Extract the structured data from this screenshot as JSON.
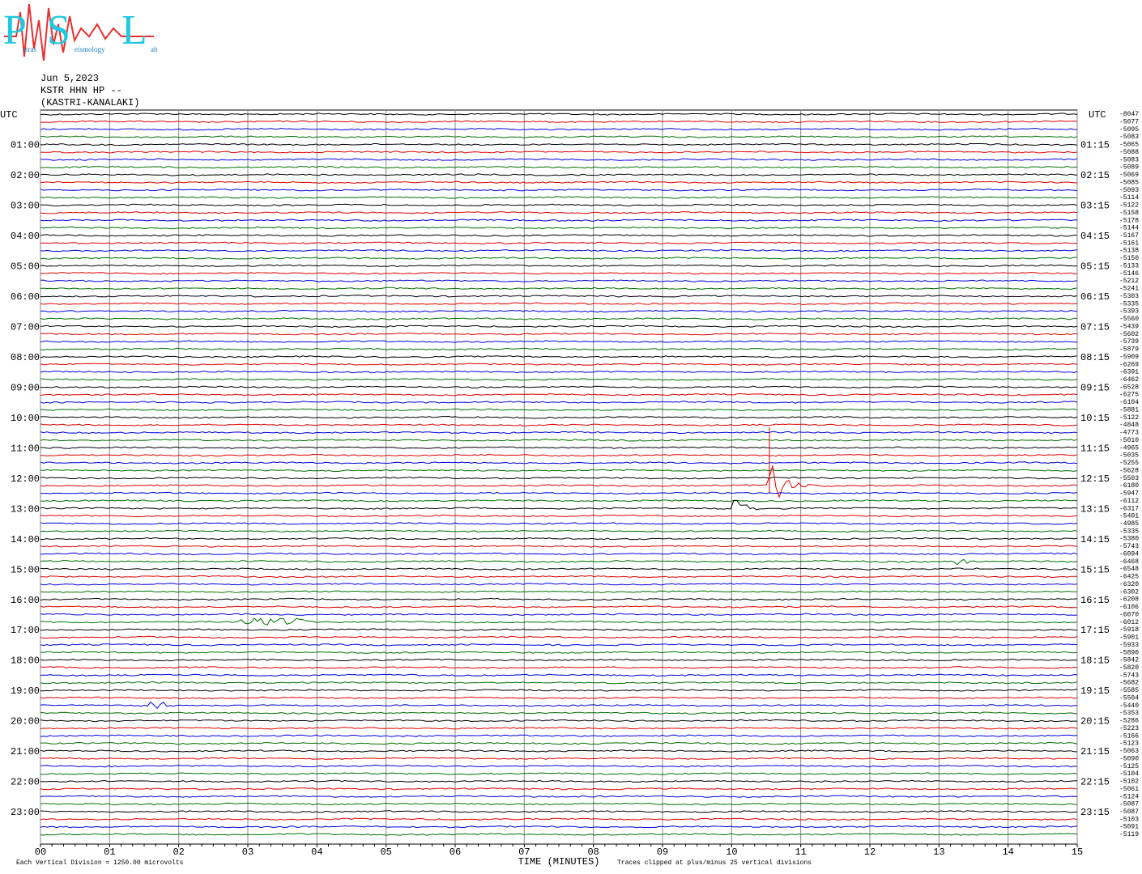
{
  "header": {
    "logo": {
      "letter_p": "P",
      "p_rest": "atras",
      "letter_s": "S",
      "s_rest": "eismology",
      "letter_l": "L",
      "l_rest": "ab"
    },
    "date": "Jun 5,2023",
    "station": "KSTR HHN HP --",
    "location": "(KASTRI-KANALAKI)"
  },
  "left_labels": [
    "UTC",
    "01:00",
    "02:00",
    "03:00",
    "04:00",
    "05:00",
    "06:00",
    "07:00",
    "08:00",
    "09:00",
    "10:00",
    "11:00",
    "12:00",
    "13:00",
    "14:00",
    "15:00",
    "16:00",
    "17:00",
    "18:00",
    "19:00",
    "20:00",
    "21:00",
    "22:00",
    "23:00"
  ],
  "right_labels": [
    "UTC",
    "01:15",
    "02:15",
    "03:15",
    "04:15",
    "05:15",
    "06:15",
    "07:15",
    "08:15",
    "09:15",
    "10:15",
    "11:15",
    "12:15",
    "13:15",
    "14:15",
    "15:15",
    "16:15",
    "17:15",
    "18:15",
    "19:15",
    "20:15",
    "21:15",
    "22:15",
    "23:15"
  ],
  "trace_offsets": [
    -8047,
    -5077,
    -5095,
    -5083,
    -5065,
    -5088,
    -5083,
    -5089,
    -5069,
    -5085,
    -5093,
    -5114,
    -5122,
    -5158,
    -5178,
    -5144,
    -5167,
    -5161,
    -5138,
    -5150,
    -5133,
    -5146,
    -5212,
    -5241,
    -5303,
    -5335,
    -5393,
    -5560,
    -5439,
    -5602,
    -5739,
    -5879,
    -5909,
    -6269,
    -6391,
    -6462,
    -6528,
    -6275,
    -6104,
    -5881,
    -5122,
    -4848,
    -4773,
    -5010,
    -4965,
    -5035,
    -5255,
    -5628,
    -5503,
    -6180,
    -5947,
    -6112,
    -6317,
    -5401,
    -4985,
    -5335,
    -5380,
    -5743,
    -6094,
    -6468,
    -6548,
    -6425,
    -6320,
    -6302,
    -6208,
    -6106,
    -6070,
    -6012,
    -5918,
    -5901,
    -5933,
    -5890,
    -5842,
    -5820,
    -5743,
    -5682,
    -5585,
    -5504,
    -5440,
    -5353,
    -5286,
    -5223,
    -5166,
    -5123,
    -5063,
    -5090,
    -5125,
    -5104,
    -5102,
    -5061,
    -5124,
    -5087,
    -5087,
    -5103,
    -5091,
    -5119
  ],
  "x_ticks": [
    "00",
    "01",
    "02",
    "03",
    "04",
    "05",
    "06",
    "07",
    "08",
    "09",
    "10",
    "11",
    "12",
    "13",
    "14",
    "15"
  ],
  "x_axis_title": "TIME (MINUTES)",
  "footer_scale": "Each Vertical Division = 1250.00 microvolts",
  "footer_clip": "Traces clipped at plus/minus 25 vertical divisions"
}
